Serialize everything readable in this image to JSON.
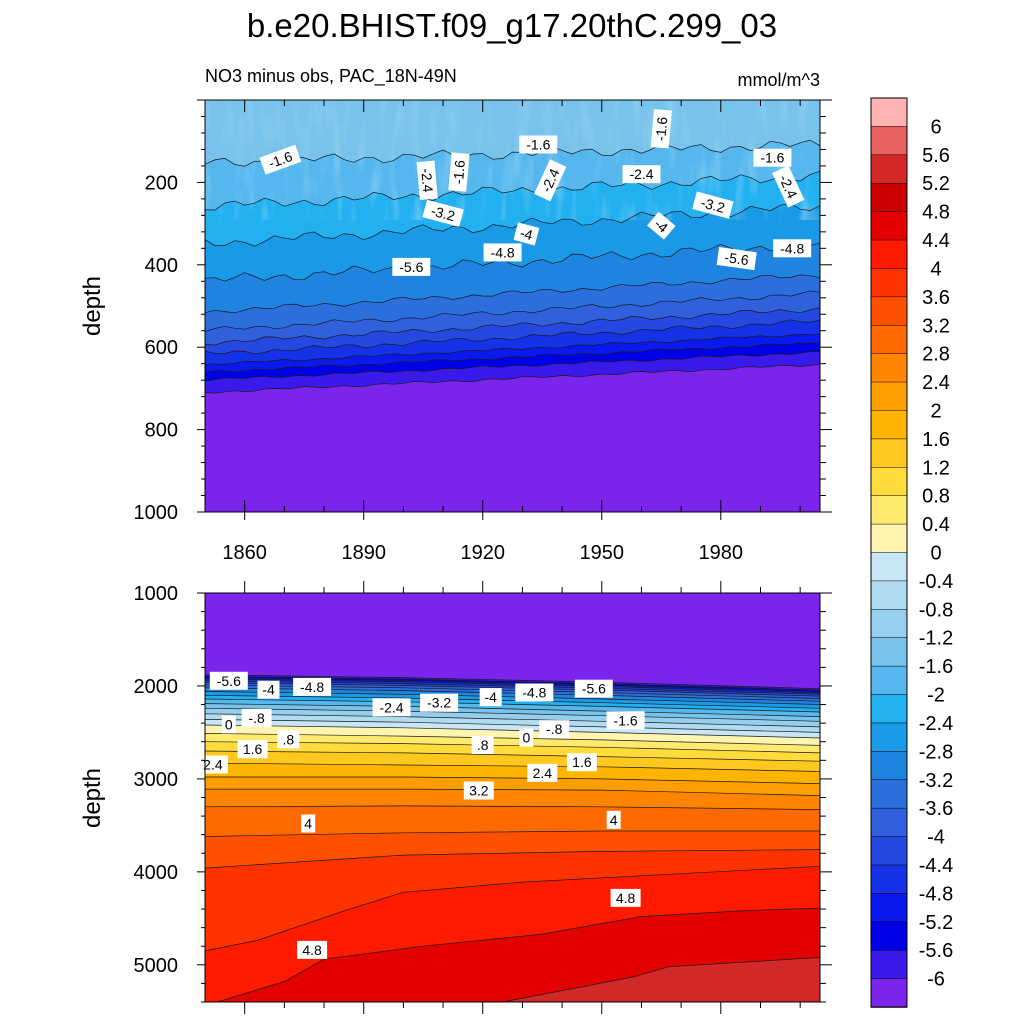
{
  "title": "b.e20.BHIST.f09_g17.20thC.299_03",
  "subtitle_left": "NO3 minus obs, PAC_18N-49N",
  "subtitle_right": "mmol/m^3",
  "colorbar_labels": [
    "6",
    "5.6",
    "5.2",
    "4.8",
    "4.4",
    "4",
    "3.6",
    "3.2",
    "2.8",
    "2.4",
    "2",
    "1.6",
    "1.2",
    "0.8",
    "0.4",
    "0",
    "-0.4",
    "-0.8",
    "-1.2",
    "-1.6",
    "-2",
    "-2.4",
    "-2.8",
    "-3.2",
    "-3.6",
    "-4",
    "-4.4",
    "-4.8",
    "-5.2",
    "-5.6",
    "-6"
  ],
  "chart_data": [
    {
      "type": "contour",
      "panel": "top",
      "title": "NO3 minus obs, PAC_18N-49N",
      "units": "mmol/m^3",
      "xlabel": "",
      "ylabel": "depth",
      "xlim": [
        1850,
        2005
      ],
      "ylim": [
        1000,
        0
      ],
      "xticks": [
        1860,
        1890,
        1920,
        1950,
        1980
      ],
      "yticks": [
        200,
        400,
        600,
        800,
        1000
      ],
      "levels": [
        -6,
        -5.6,
        -5.2,
        -4.8,
        -4.4,
        -4,
        -3.6,
        -3.2,
        -2.8,
        -2.4,
        -2,
        -1.6,
        -1.2,
        -0.8,
        -0.4,
        0,
        0.4,
        0.8,
        1.2,
        1.6,
        2,
        2.4,
        2.8,
        3.2,
        3.6,
        4,
        4.4,
        4.8,
        5.2,
        5.6,
        6
      ],
      "contour_labels": [
        {
          "text": "-1.6",
          "year": 1869,
          "depth": 145,
          "angle": 20
        },
        {
          "text": "-1.6",
          "year": 1934,
          "depth": 108,
          "angle": 0
        },
        {
          "text": "-1.6",
          "year": 1965,
          "depth": 70,
          "angle": 85
        },
        {
          "text": "-1.6",
          "year": 1993,
          "depth": 140,
          "angle": 0
        },
        {
          "text": "-1.6",
          "year": 1914,
          "depth": 175,
          "angle": 85
        },
        {
          "text": "-2.4",
          "year": 1906,
          "depth": 195,
          "angle": -85
        },
        {
          "text": "-2.4",
          "year": 1937,
          "depth": 195,
          "angle": 65
        },
        {
          "text": "-2.4",
          "year": 1960,
          "depth": 180,
          "angle": 0
        },
        {
          "text": "-2.4",
          "year": 1997,
          "depth": 210,
          "angle": -65
        },
        {
          "text": "-3.2",
          "year": 1910,
          "depth": 275,
          "angle": -15
        },
        {
          "text": "-3.2",
          "year": 1978,
          "depth": 255,
          "angle": -15
        },
        {
          "text": "-4",
          "year": 1931,
          "depth": 325,
          "angle": -15
        },
        {
          "text": "-4",
          "year": 1965,
          "depth": 305,
          "angle": -40
        },
        {
          "text": "-4.8",
          "year": 1925,
          "depth": 370,
          "angle": 0
        },
        {
          "text": "-4.8",
          "year": 1998,
          "depth": 360,
          "angle": 0
        },
        {
          "text": "-5.6",
          "year": 1902,
          "depth": 405,
          "angle": 0
        },
        {
          "text": "-5.6",
          "year": 1984,
          "depth": 385,
          "angle": -8
        }
      ]
    },
    {
      "type": "contour",
      "panel": "bottom",
      "title": "",
      "xlabel": "",
      "ylabel": "depth",
      "xlim": [
        1850,
        2005
      ],
      "ylim": [
        5400,
        1000
      ],
      "yticks": [
        1000,
        2000,
        3000,
        4000,
        5000
      ],
      "contour_labels": [
        {
          "text": "-5.6",
          "year": 1856,
          "depth": 1945
        },
        {
          "text": "-4",
          "year": 1866,
          "depth": 2040
        },
        {
          "text": "-4.8",
          "year": 1877,
          "depth": 2010
        },
        {
          "text": "-2.4",
          "year": 1897,
          "depth": 2230
        },
        {
          "text": "-3.2",
          "year": 1909,
          "depth": 2180
        },
        {
          "text": "-4",
          "year": 1922,
          "depth": 2120
        },
        {
          "text": "-4.8",
          "year": 1933,
          "depth": 2070
        },
        {
          "text": "-5.6",
          "year": 1948,
          "depth": 2030
        },
        {
          "text": "-1.6",
          "year": 1956,
          "depth": 2370
        },
        {
          "text": "0",
          "year": 1856,
          "depth": 2415
        },
        {
          "text": "-.8",
          "year": 1863,
          "depth": 2345
        },
        {
          "text": ".8",
          "year": 1871,
          "depth": 2575
        },
        {
          "text": "1.6",
          "year": 1862,
          "depth": 2680
        },
        {
          "text": "2.4",
          "year": 1852,
          "depth": 2845
        },
        {
          "text": ".8",
          "year": 1920,
          "depth": 2635
        },
        {
          "text": "0",
          "year": 1931,
          "depth": 2555
        },
        {
          "text": "-.8",
          "year": 1938,
          "depth": 2465
        },
        {
          "text": "1.6",
          "year": 1945,
          "depth": 2820
        },
        {
          "text": "2.4",
          "year": 1935,
          "depth": 2935
        },
        {
          "text": "3.2",
          "year": 1919,
          "depth": 3125
        },
        {
          "text": "4",
          "year": 1876,
          "depth": 3480
        },
        {
          "text": "4",
          "year": 1953,
          "depth": 3440
        },
        {
          "text": "4.8",
          "year": 1956,
          "depth": 4280
        },
        {
          "text": "4.8",
          "year": 1877,
          "depth": 4840
        }
      ]
    }
  ]
}
